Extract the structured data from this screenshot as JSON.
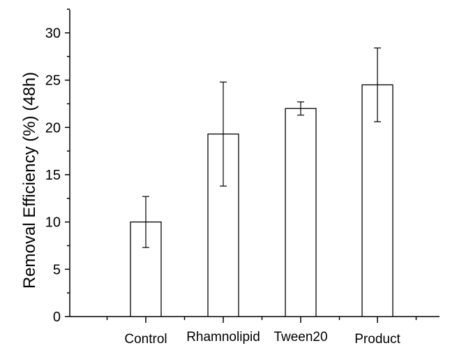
{
  "chart_data": {
    "type": "bar",
    "title": "",
    "xlabel": "",
    "ylabel": "Removal Efficiency (%) (48h)",
    "categories": [
      "Control",
      "Rhamnolipid",
      "Tween20",
      "Product"
    ],
    "values": [
      10.0,
      19.3,
      22.0,
      24.5
    ],
    "error": [
      2.7,
      5.5,
      0.7,
      3.9
    ],
    "ylim": [
      0,
      32
    ],
    "yticks": [
      0,
      5,
      10,
      15,
      20,
      25,
      30
    ],
    "ytick_labels": [
      "0",
      "5",
      "10",
      "15",
      "20",
      "25",
      "30"
    ],
    "grid": false,
    "bar_fill": "#ffffff",
    "bar_stroke": "#000000"
  }
}
